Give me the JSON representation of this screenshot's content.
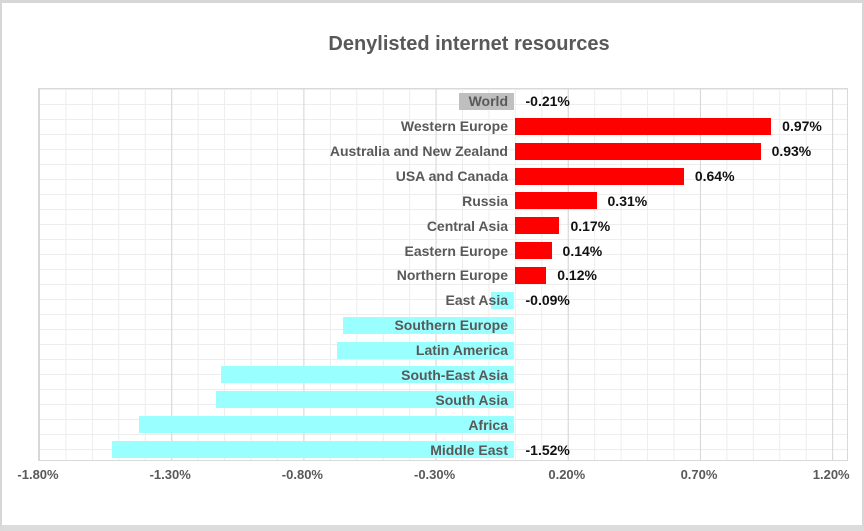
{
  "chart": {
    "title": "Denylisted internet resources"
  },
  "chart_data": {
    "type": "bar",
    "orientation": "horizontal",
    "title": "Denylisted internet resources",
    "xlabel": "",
    "ylabel": "",
    "xlim": [
      -1.81,
      1.26
    ],
    "x_ticks": [
      "-1.80%",
      "-1.30%",
      "-0.80%",
      "-0.30%",
      "0.20%",
      "0.70%",
      "1.20%"
    ],
    "x_tick_values": [
      -1.8,
      -1.3,
      -0.8,
      -0.3,
      0.2,
      0.7,
      1.2
    ],
    "grid": true,
    "legend": "none",
    "colors": {
      "positive_bar": "#FF0000",
      "negative_bar": "#99FFFF",
      "world_bar": "#BFBFBF",
      "category_text": "#595959",
      "value_text": "#111111",
      "title_text": "#595959"
    },
    "points": [
      {
        "category": "World",
        "value": -0.21,
        "label": "-0.21%",
        "color": "#BFBFBF"
      },
      {
        "category": "Western Europe",
        "value": 0.97,
        "label": "0.97%",
        "color": "#FF0000"
      },
      {
        "category": "Australia and New Zealand",
        "value": 0.93,
        "label": "0.93%",
        "color": "#FF0000"
      },
      {
        "category": "USA and Canada",
        "value": 0.64,
        "label": "0.64%",
        "color": "#FF0000"
      },
      {
        "category": "Russia",
        "value": 0.31,
        "label": "0.31%",
        "color": "#FF0000"
      },
      {
        "category": "Central Asia",
        "value": 0.17,
        "label": "0.17%",
        "color": "#FF0000"
      },
      {
        "category": "Eastern Europe",
        "value": 0.14,
        "label": "0.14%",
        "color": "#FF0000"
      },
      {
        "category": "Northern Europe",
        "value": 0.12,
        "label": "0.12%",
        "color": "#FF0000"
      },
      {
        "category": "East Asia",
        "value": -0.09,
        "label": "-0.09%",
        "color": "#99FFFF"
      },
      {
        "category": "Southern Europe",
        "value": -0.65,
        "label": "",
        "color": "#99FFFF"
      },
      {
        "category": "Latin America",
        "value": -0.67,
        "label": "",
        "color": "#99FFFF"
      },
      {
        "category": "South-East Asia",
        "value": -1.11,
        "label": "",
        "color": "#99FFFF"
      },
      {
        "category": "South Asia",
        "value": -1.13,
        "label": "",
        "color": "#99FFFF"
      },
      {
        "category": "Africa",
        "value": -1.42,
        "label": "",
        "color": "#99FFFF"
      },
      {
        "category": "Middle East",
        "value": -1.52,
        "label": "-1.52%",
        "color": "#99FFFF"
      }
    ]
  }
}
